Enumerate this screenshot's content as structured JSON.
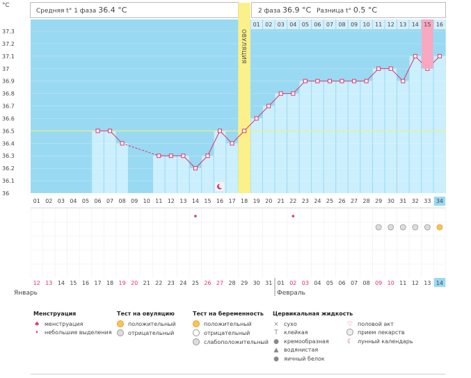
{
  "header": {
    "phase1_label": "Средняя t° 1 фаза",
    "phase1_value": "36.4 °C",
    "phase2_label": "2 фаза",
    "phase2_value": "36.9 °C",
    "diff_label": "Разница t°",
    "diff_value": "0.5 °C"
  },
  "chart_data": {
    "type": "line",
    "yunit": "°C",
    "ylim": [
      36.0,
      37.3
    ],
    "y_ticks": [
      "37.3",
      "37.2",
      "37.1",
      "37",
      "36.9",
      "36.8",
      "36.7",
      "36.6",
      "36.5",
      "36.4",
      "36.3",
      "36.2",
      "36.1",
      "36"
    ],
    "coverline": 36.5,
    "ovulation_cycle_day": 18,
    "ovulation_label": "ОВУЛЯЦИЯ",
    "cycle_days": [
      "01",
      "02",
      "03",
      "04",
      "05",
      "06",
      "07",
      "08",
      "09",
      "10",
      "11",
      "12",
      "13",
      "14",
      "15",
      "16",
      "17",
      "18",
      "19",
      "20",
      "21",
      "22",
      "23",
      "24",
      "25",
      "26",
      "27",
      "28",
      "29",
      "30",
      "31",
      "32",
      "33",
      "34"
    ],
    "post_ovulation_days": [
      "01",
      "02",
      "03",
      "04",
      "05",
      "06",
      "07",
      "08",
      "09",
      "10",
      "11",
      "12",
      "13",
      "14",
      "15",
      "16"
    ],
    "temperatures": [
      null,
      null,
      null,
      null,
      null,
      36.5,
      36.5,
      36.4,
      null,
      null,
      36.3,
      36.3,
      36.3,
      36.2,
      36.3,
      36.5,
      36.4,
      36.5,
      36.6,
      36.7,
      36.8,
      36.8,
      36.9,
      36.9,
      36.9,
      36.9,
      36.9,
      36.9,
      37.0,
      37.0,
      36.9,
      37.1,
      37.0,
      37.1
    ],
    "interpolated_gaps": [
      [
        8,
        11
      ]
    ],
    "highlight_last_day": "34",
    "calendar_dates": [
      "12",
      "13",
      "14",
      "15",
      "16",
      "17",
      "18",
      "19",
      "20",
      "21",
      "22",
      "23",
      "24",
      "25",
      "26",
      "27",
      "28",
      "29",
      "30",
      "31",
      "01",
      "02",
      "03",
      "04",
      "05",
      "06",
      "07",
      "08",
      "09",
      "10",
      "11",
      "12",
      "13",
      "14"
    ],
    "calendar_red_dates_index": [
      0,
      1,
      7,
      8,
      14,
      15,
      21,
      22,
      28,
      29
    ],
    "month_left": "Январь",
    "month_right": "Февраль",
    "menstruation_small_days": [
      14,
      22
    ],
    "lunar_day": 16,
    "pregnancy_test_days": [
      29,
      30,
      31,
      32,
      33
    ],
    "pregnancy_positive_day": 34
  },
  "legend": {
    "menstruation": {
      "title": "Менструация",
      "items": [
        "менструация",
        "небольшие выделения"
      ]
    },
    "ovulation_test": {
      "title": "Тест на овуляцию",
      "items": [
        "положительный",
        "отрицательный"
      ]
    },
    "pregnancy_test": {
      "title": "Тест на беременность",
      "items": [
        "положительный",
        "отрицательный",
        "слабоположительный"
      ]
    },
    "cervical": {
      "title": "Цервикальная жидкость",
      "items": [
        "сухо",
        "клейкая",
        "кремообразная",
        "водянистая",
        "яичный белок"
      ]
    },
    "other": {
      "items": [
        "половой акт",
        "прием лекарств",
        "лунный календарь"
      ]
    }
  },
  "colors": {
    "bg_blue": "#9ad9f2",
    "bar": "#cbeffc",
    "line": "#e0306a",
    "ovulation": "#fbf08a",
    "coverline": "#e9ef8c"
  }
}
